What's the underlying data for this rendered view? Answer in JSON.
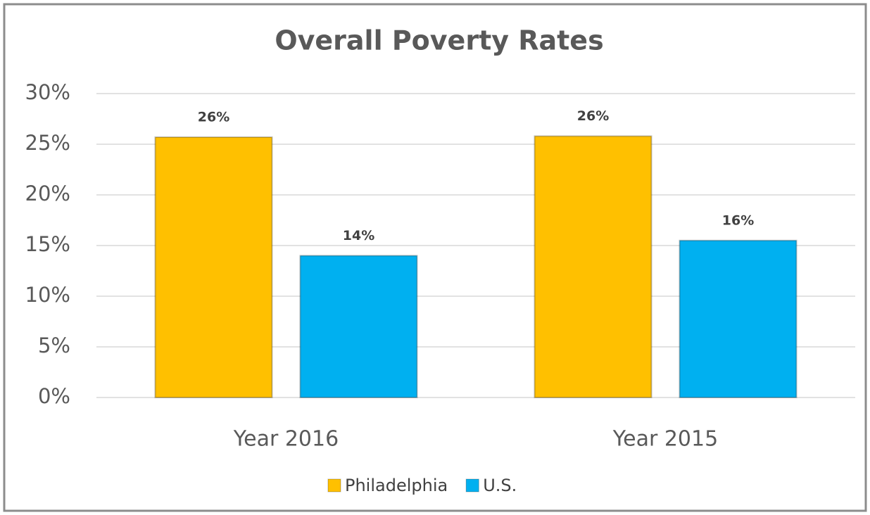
{
  "chart_data": {
    "type": "bar",
    "title": "Overall Poverty Rates",
    "categories": [
      "Year 2016",
      "Year 2015"
    ],
    "series": [
      {
        "name": "Philadelphia",
        "color": "#FFC000",
        "values": [
          25.7,
          25.8
        ],
        "value_labels": [
          "26%",
          "26%"
        ]
      },
      {
        "name": "U.S.",
        "color": "#00B0F0",
        "values": [
          14.0,
          15.5
        ],
        "value_labels": [
          "14%",
          "16%"
        ]
      }
    ],
    "ylim": [
      0,
      30
    ],
    "yticks": [
      {
        "value": 0,
        "label": "0%"
      },
      {
        "value": 5,
        "label": "5%"
      },
      {
        "value": 10,
        "label": "10%"
      },
      {
        "value": 15,
        "label": "15%"
      },
      {
        "value": 20,
        "label": "20%"
      },
      {
        "value": 25,
        "label": "25%"
      },
      {
        "value": 30,
        "label": "30%"
      }
    ],
    "grid": true,
    "legend": "bottom"
  }
}
